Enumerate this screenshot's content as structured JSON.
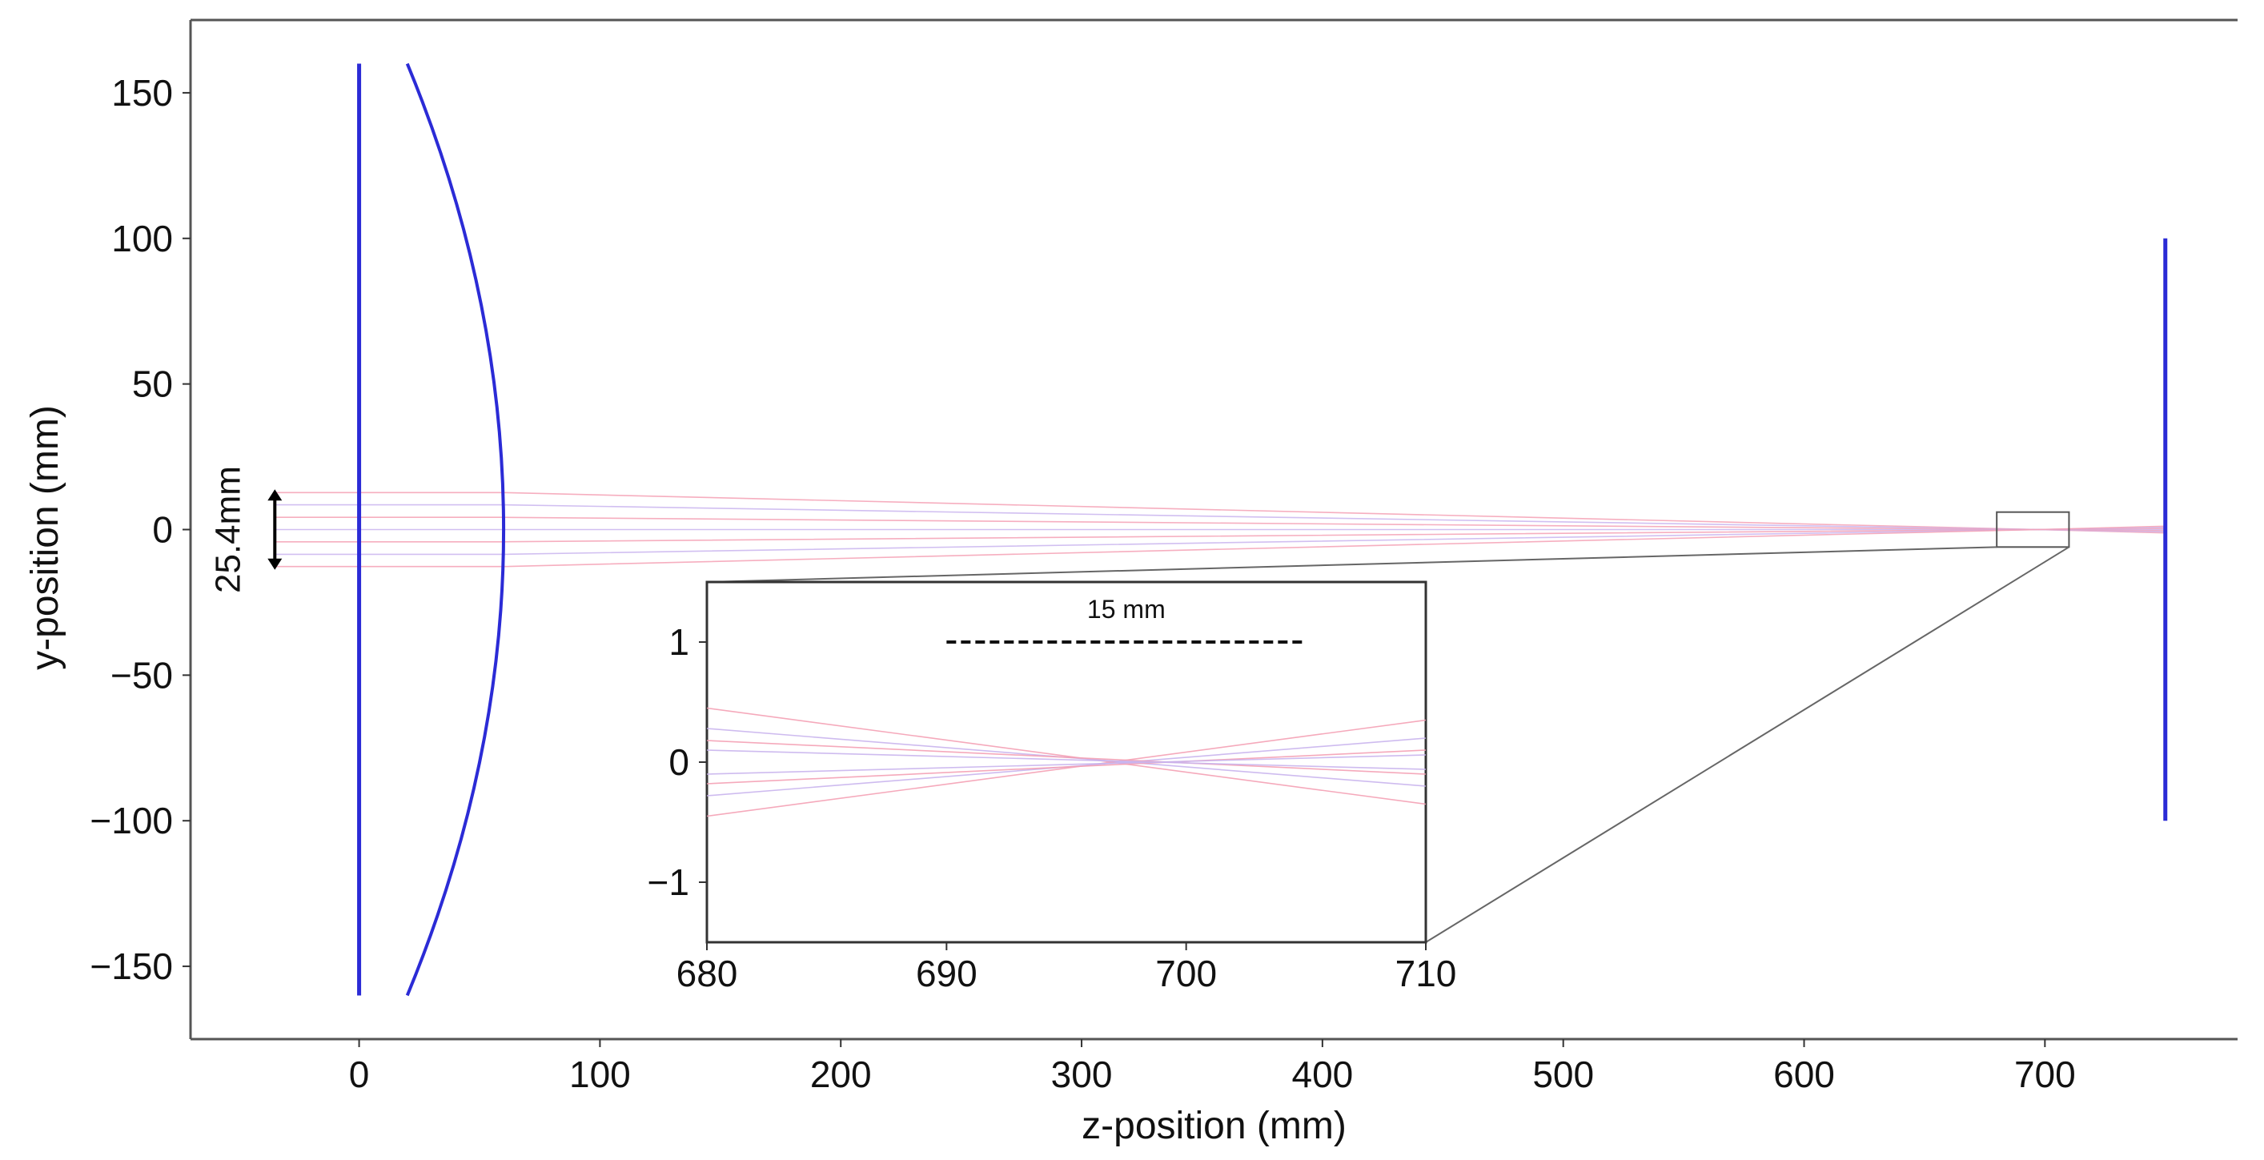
{
  "chart_data": [
    {
      "type": "line",
      "title": "",
      "xlabel": "z-position (mm)",
      "ylabel": "y-position (mm)",
      "xlim": [
        -70,
        780
      ],
      "ylim": [
        -175,
        175
      ],
      "xticks": [
        0,
        100,
        200,
        300,
        400,
        500,
        600,
        700
      ],
      "yticks": [
        150,
        100,
        50,
        0,
        -50,
        -100,
        -150
      ],
      "xtick_labels": [
        "0",
        "100",
        "200",
        "300",
        "400",
        "500",
        "600",
        "700"
      ],
      "ytick_labels": [
        "150",
        "100",
        "50",
        "0",
        "−50",
        "−100",
        "−150"
      ],
      "grid": false,
      "colors": {
        "element": "#2b2bd6",
        "ray": "#f4a0b4",
        "ray_alt": "#c9b4ee",
        "frame": "#555555"
      },
      "elements": [
        {
          "name": "plane-element",
          "z": [
            0,
            0
          ],
          "y": [
            -160,
            160
          ]
        },
        {
          "name": "curved-mirror",
          "z_edge": 20,
          "z_center": 60,
          "y_extent": 160
        },
        {
          "name": "detector-plane",
          "z": [
            750,
            750
          ],
          "y": [
            -100,
            100
          ]
        }
      ],
      "rays": {
        "z_start": -35,
        "z_turn": 60,
        "z_focus": 697,
        "z_end": 750,
        "y_start": [
          12.7,
          8.5,
          4.2,
          0,
          -4.2,
          -8.5,
          -12.7
        ]
      },
      "beam_annotation": {
        "label": "25.4mm",
        "z": -35,
        "y_range": [
          -12.7,
          12.7
        ]
      },
      "zoom_box": {
        "z": [
          680,
          710
        ],
        "y": [
          -1.5,
          1.5
        ]
      }
    },
    {
      "type": "line",
      "title": "",
      "xlabel": "",
      "ylabel": "",
      "xlim": [
        680,
        710
      ],
      "ylim": [
        -1.5,
        1.5
      ],
      "xticks": [
        680,
        690,
        700,
        710
      ],
      "yticks": [
        1,
        0,
        -1
      ],
      "xtick_labels": [
        "680",
        "690",
        "700",
        "710"
      ],
      "ytick_labels": [
        "1",
        "0",
        "−1"
      ],
      "grid": false,
      "scale_bar": {
        "label": "15 mm",
        "z": [
          690,
          705
        ],
        "y": 1
      },
      "rays": [
        {
          "y_at_680": 0.45,
          "y_at_710": -0.35,
          "color": "ray"
        },
        {
          "y_at_680": -0.45,
          "y_at_710": 0.35,
          "color": "ray"
        },
        {
          "y_at_680": 0.28,
          "y_at_710": -0.2,
          "color": "ray_alt"
        },
        {
          "y_at_680": -0.28,
          "y_at_710": 0.2,
          "color": "ray_alt"
        },
        {
          "y_at_680": 0.18,
          "y_at_710": -0.1,
          "color": "ray"
        },
        {
          "y_at_680": -0.18,
          "y_at_710": 0.1,
          "color": "ray"
        },
        {
          "y_at_680": 0.1,
          "y_at_710": -0.06,
          "color": "ray_alt"
        },
        {
          "y_at_680": -0.1,
          "y_at_710": 0.06,
          "color": "ray_alt"
        }
      ]
    }
  ]
}
